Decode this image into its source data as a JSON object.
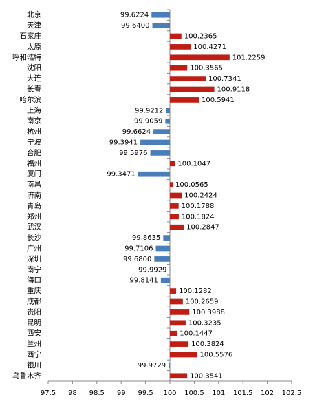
{
  "chart_data": {
    "type": "bar",
    "orientation": "horizontal",
    "categories": [
      "北京",
      "天津",
      "石家庄",
      "太原",
      "呼和浩特",
      "沈阳",
      "大连",
      "长春",
      "哈尔滨",
      "上海",
      "南京",
      "杭州",
      "宁波",
      "合肥",
      "福州",
      "厦门",
      "南昌",
      "济南",
      "青岛",
      "郑州",
      "武汉",
      "长沙",
      "广州",
      "深圳",
      "南宁",
      "海口",
      "重庆",
      "成都",
      "贵阳",
      "昆明",
      "西安",
      "兰州",
      "西宁",
      "银川",
      "乌鲁木齐"
    ],
    "values": [
      99.6224,
      99.64,
      100.2365,
      100.4271,
      101.2259,
      100.3565,
      100.7341,
      100.9118,
      100.5941,
      99.9212,
      99.9059,
      99.6624,
      99.3941,
      99.5976,
      100.1047,
      99.3471,
      100.0565,
      100.2424,
      100.1788,
      100.1824,
      100.2847,
      99.8635,
      99.7106,
      99.68,
      99.9929,
      99.8141,
      100.1282,
      100.2659,
      100.3988,
      100.3235,
      100.1447,
      100.3824,
      100.5576,
      99.9729,
      100.3541
    ],
    "value_labels": [
      "99.6224",
      "99.6400",
      "100.2365",
      "100.4271",
      "101.2259",
      "100.3565",
      "100.7341",
      "100.9118",
      "100.5941",
      "99.9212",
      "99.9059",
      "99.6624",
      "99.3941",
      "99.5976",
      "100.1047",
      "99.3471",
      "100.0565",
      "100.2424",
      "100.1788",
      "100.1824",
      "100.2847",
      "99.8635",
      "99.7106",
      "99.6800",
      "99.9929",
      "99.8141",
      "100.1282",
      "100.2659",
      "100.3988",
      "100.3235",
      "100.1447",
      "100.3824",
      "100.5576",
      "99.9729",
      "100.3541"
    ],
    "xlim": [
      97.5,
      102.5
    ],
    "xticks": [
      97.5,
      98,
      98.5,
      99,
      99.5,
      100,
      100.5,
      101,
      101.5,
      102,
      102.5
    ],
    "x_axis_crosses_at": 100,
    "negative_color": "#4a7ebb",
    "positive_color": "#be1e14"
  }
}
